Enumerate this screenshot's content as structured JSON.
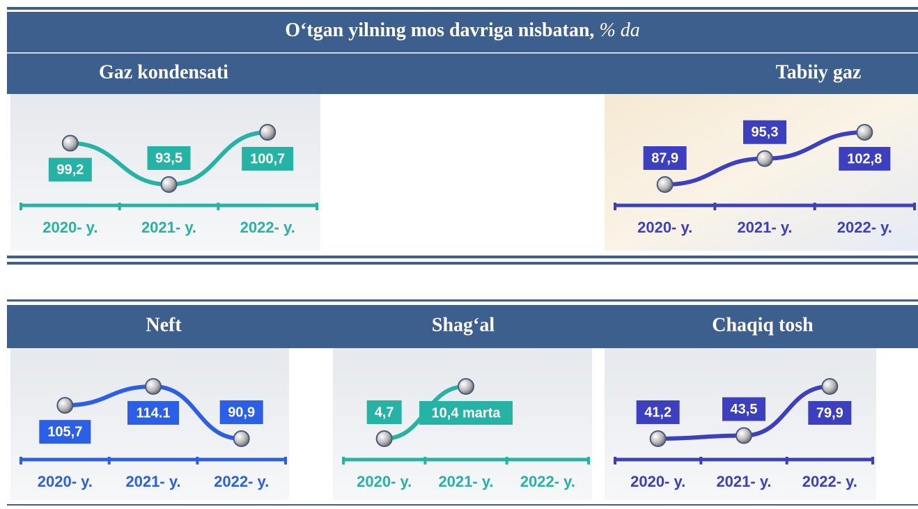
{
  "header": {
    "title": "O‘tgan yilning mos davriga nisbatan,",
    "unit": "% da"
  },
  "chart_data": [
    {
      "type": "line",
      "title": "Gaz kondensati",
      "categories": [
        "2020- y.",
        "2021- y.",
        "2022- y."
      ],
      "values": [
        99.2,
        93.5,
        100.7
      ],
      "value_labels": [
        "99,2",
        "93,5",
        "100,7"
      ],
      "color": "#25b3a5"
    },
    {
      "type": "line",
      "title": "Tabiiy gaz",
      "categories": [
        "2020- y.",
        "2021- y.",
        "2022- y."
      ],
      "values": [
        87.9,
        95.3,
        102.8
      ],
      "value_labels": [
        "87,9",
        "95,3",
        "102,8"
      ],
      "color": "#3b3fc0"
    },
    {
      "type": "line",
      "title": "Neft",
      "categories": [
        "2020- y.",
        "2021- y.",
        "2022- y."
      ],
      "values": [
        105.7,
        114.1,
        90.9
      ],
      "value_labels": [
        "105,7",
        "114.1",
        "90,9"
      ],
      "color": "#2b5fe8"
    },
    {
      "type": "line",
      "title": "Shag‘al",
      "categories": [
        "2020- y.",
        "2021- y.",
        "2022- y."
      ],
      "values": [
        4.7,
        10.4,
        null
      ],
      "value_labels": [
        "4,7",
        "10,4 marta",
        null
      ],
      "color": "#25b3a5"
    },
    {
      "type": "line",
      "title": "Chaqiq tosh",
      "categories": [
        "2020- y.",
        "2021- y.",
        "2022- y."
      ],
      "values": [
        41.2,
        43.5,
        79.9
      ],
      "value_labels": [
        "41,2",
        "43,5",
        "79,9"
      ],
      "color": "#3b3fc0"
    }
  ]
}
